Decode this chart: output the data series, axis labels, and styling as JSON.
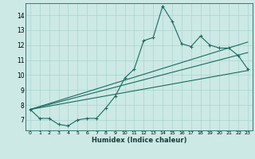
{
  "xlabel": "Humidex (Indice chaleur)",
  "xlim": [
    -0.5,
    23.5
  ],
  "ylim": [
    6.3,
    14.8
  ],
  "yticks": [
    7,
    8,
    9,
    10,
    11,
    12,
    13,
    14
  ],
  "xticks": [
    0,
    1,
    2,
    3,
    4,
    5,
    6,
    7,
    8,
    9,
    10,
    11,
    12,
    13,
    14,
    15,
    16,
    17,
    18,
    19,
    20,
    21,
    22,
    23
  ],
  "bg_color": "#cce9e5",
  "line_color": "#1a6b5e",
  "grid_color": "#aad4cf",
  "line1_x": [
    0,
    1,
    2,
    3,
    4,
    5,
    6,
    7,
    8,
    9,
    10,
    11,
    12,
    13,
    14,
    15,
    16,
    17,
    18,
    19,
    20,
    21,
    22,
    23
  ],
  "line1_y": [
    7.7,
    7.1,
    7.1,
    6.7,
    6.6,
    7.0,
    7.1,
    7.1,
    7.8,
    8.6,
    9.8,
    10.4,
    12.3,
    12.5,
    14.6,
    13.6,
    12.1,
    11.9,
    12.6,
    12.0,
    11.8,
    11.8,
    11.3,
    10.4
  ],
  "line2_x": [
    0,
    23
  ],
  "line2_y": [
    7.7,
    10.3
  ],
  "line3_x": [
    0,
    23
  ],
  "line3_y": [
    7.7,
    11.5
  ],
  "line4_x": [
    0,
    23
  ],
  "line4_y": [
    7.7,
    12.2
  ]
}
